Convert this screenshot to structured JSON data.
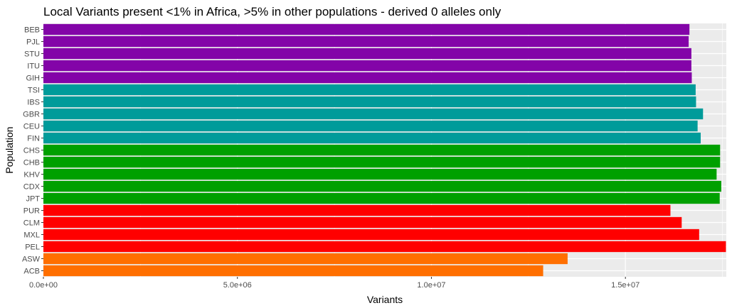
{
  "chart_data": {
    "type": "bar",
    "orientation": "horizontal",
    "title": "Local Variants present <1% in Africa, >5% in other populations - derived 0 alleles only",
    "xlabel": "Variants",
    "ylabel": "Population",
    "xlim": [
      0,
      17600000
    ],
    "x_ticks": [
      0,
      5000000,
      10000000,
      15000000
    ],
    "x_tick_labels": [
      "0.0e+00",
      "5.0e+06",
      "1.0e+07",
      "1.5e+07"
    ],
    "grid": true,
    "legend": "none",
    "categories": [
      "BEB",
      "PJL",
      "STU",
      "ITU",
      "GIH",
      "TSI",
      "IBS",
      "GBR",
      "CEU",
      "FIN",
      "CHS",
      "CHB",
      "KHV",
      "CDX",
      "JPT",
      "PUR",
      "CLM",
      "MXL",
      "PEL",
      "ASW",
      "ACB"
    ],
    "values": [
      16650000,
      16630000,
      16700000,
      16700000,
      16710000,
      16810000,
      16820000,
      17000000,
      16860000,
      16940000,
      17440000,
      17440000,
      17350000,
      17470000,
      17430000,
      16160000,
      16450000,
      16900000,
      17590000,
      13510000,
      12880000
    ],
    "bar_colors": [
      "#8304A8",
      "#8304A8",
      "#8304A8",
      "#8304A8",
      "#8304A8",
      "#009B9A",
      "#009B9A",
      "#009B9A",
      "#009B9A",
      "#009B9A",
      "#00A000",
      "#00A000",
      "#00A000",
      "#00A000",
      "#00A000",
      "#FF0000",
      "#FF0000",
      "#FF0000",
      "#FF0000",
      "#FF6F00",
      "#FF6F00"
    ],
    "panel_background": "#EBEBEB",
    "gridline_color": "#FFFFFF"
  }
}
